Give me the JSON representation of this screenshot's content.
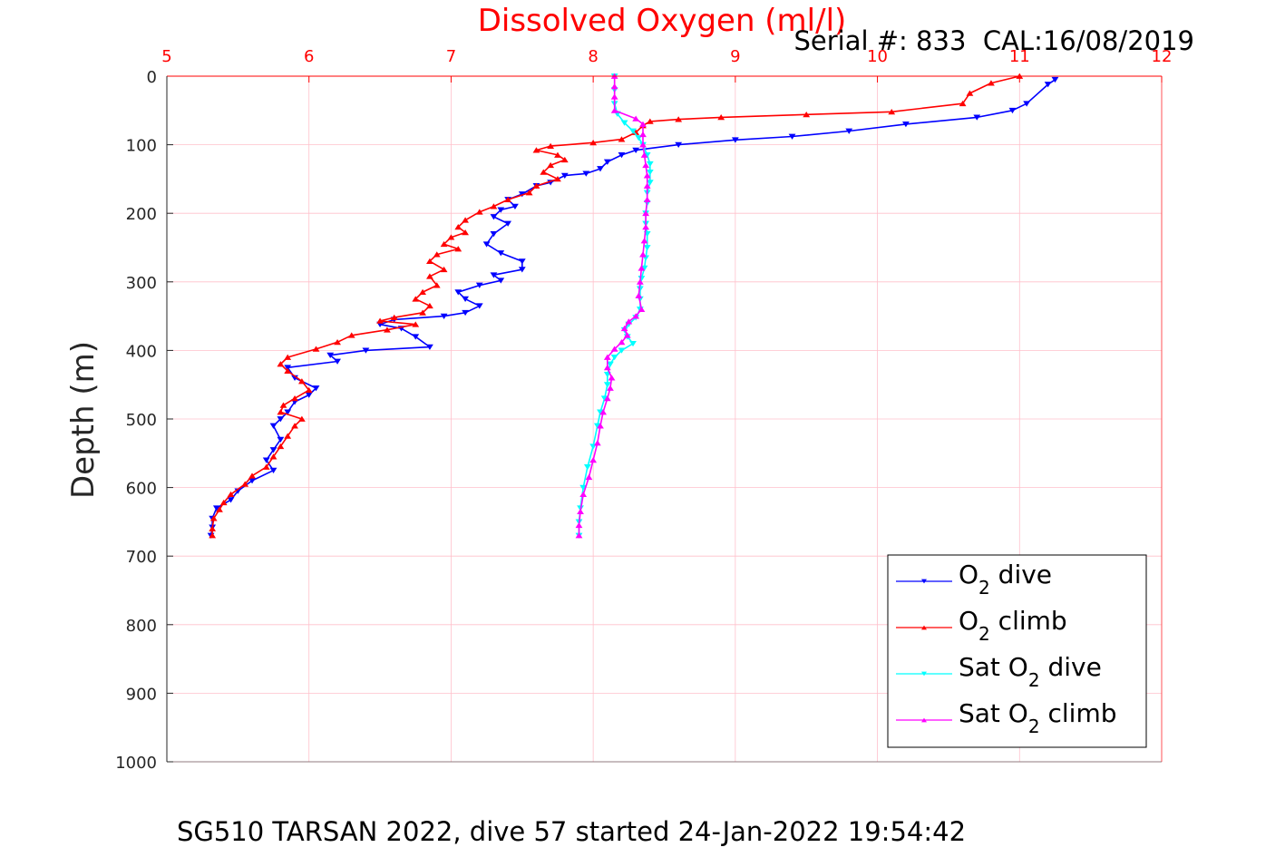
{
  "chart_data": {
    "type": "line",
    "title": "Dissolved Oxygen (ml/l)",
    "subtitle": "Serial #: 833  CAL:16/08/2019",
    "caption": "SG510 TARSAN 2022, dive 57 started 24-Jan-2022 19:54:42",
    "xlabel": "",
    "ylabel": "Depth (m)",
    "xlim": [
      5,
      12
    ],
    "ylim": [
      0,
      1000
    ],
    "y_reversed": true,
    "x_axis_position": "top",
    "xticks": [
      "5",
      "6",
      "7",
      "8",
      "9",
      "10",
      "11",
      "12"
    ],
    "yticks": [
      "0",
      "100",
      "200",
      "300",
      "400",
      "500",
      "600",
      "700",
      "800",
      "900",
      "1000"
    ],
    "grid": true,
    "legend_position": "bottom-right",
    "colors": {
      "title": "#ff0000",
      "x_ticks": "#ff0000",
      "grid": "#ffc0cb"
    },
    "legend": [
      {
        "pre": "O",
        "sub": "2",
        "post": " dive",
        "color": "#0000ff",
        "marker": "down-triangle"
      },
      {
        "pre": "O",
        "sub": "2",
        "post": " climb",
        "color": "#ff0000",
        "marker": "up-triangle"
      },
      {
        "pre": "Sat O",
        "sub": "2",
        "post": " dive",
        "color": "#00ffff",
        "marker": "down-triangle"
      },
      {
        "pre": "Sat O",
        "sub": "2",
        "post": " climb",
        "color": "#ff00ff",
        "marker": "up-triangle"
      }
    ],
    "series": [
      {
        "name": "O2 dive",
        "color": "#0000ff",
        "marker": "down-triangle",
        "points": [
          [
            11.25,
            5
          ],
          [
            11.2,
            12
          ],
          [
            11.05,
            40
          ],
          [
            10.95,
            50
          ],
          [
            10.7,
            60
          ],
          [
            10.2,
            70
          ],
          [
            9.8,
            80
          ],
          [
            9.4,
            88
          ],
          [
            9.0,
            93
          ],
          [
            8.6,
            100
          ],
          [
            8.3,
            108
          ],
          [
            8.2,
            115
          ],
          [
            8.1,
            125
          ],
          [
            8.05,
            135
          ],
          [
            7.95,
            142
          ],
          [
            7.8,
            145
          ],
          [
            7.7,
            155
          ],
          [
            7.6,
            160
          ],
          [
            7.5,
            172
          ],
          [
            7.4,
            180
          ],
          [
            7.45,
            190
          ],
          [
            7.35,
            195
          ],
          [
            7.3,
            205
          ],
          [
            7.4,
            215
          ],
          [
            7.3,
            230
          ],
          [
            7.25,
            245
          ],
          [
            7.35,
            258
          ],
          [
            7.5,
            270
          ],
          [
            7.5,
            282
          ],
          [
            7.3,
            290
          ],
          [
            7.35,
            298
          ],
          [
            7.2,
            305
          ],
          [
            7.05,
            315
          ],
          [
            7.1,
            325
          ],
          [
            7.2,
            335
          ],
          [
            7.1,
            345
          ],
          [
            6.95,
            350
          ],
          [
            6.6,
            355
          ],
          [
            6.5,
            362
          ],
          [
            6.65,
            368
          ],
          [
            6.75,
            380
          ],
          [
            6.85,
            395
          ],
          [
            6.4,
            400
          ],
          [
            6.15,
            407
          ],
          [
            6.2,
            416
          ],
          [
            5.85,
            425
          ],
          [
            5.9,
            440
          ],
          [
            6.05,
            455
          ],
          [
            6.0,
            465
          ],
          [
            5.9,
            475
          ],
          [
            5.85,
            490
          ],
          [
            5.8,
            500
          ],
          [
            5.75,
            510
          ],
          [
            5.8,
            530
          ],
          [
            5.75,
            545
          ],
          [
            5.7,
            560
          ],
          [
            5.75,
            575
          ],
          [
            5.6,
            590
          ],
          [
            5.5,
            605
          ],
          [
            5.45,
            618
          ],
          [
            5.35,
            630
          ],
          [
            5.32,
            645
          ],
          [
            5.32,
            658
          ],
          [
            5.31,
            670
          ]
        ]
      },
      {
        "name": "O2 climb",
        "color": "#ff0000",
        "marker": "up-triangle",
        "points": [
          [
            11.0,
            0
          ],
          [
            10.8,
            10
          ],
          [
            10.65,
            25
          ],
          [
            10.6,
            40
          ],
          [
            10.1,
            52
          ],
          [
            9.5,
            56
          ],
          [
            8.9,
            60
          ],
          [
            8.6,
            63
          ],
          [
            8.4,
            66
          ],
          [
            8.35,
            72
          ],
          [
            8.3,
            82
          ],
          [
            8.2,
            92
          ],
          [
            8.0,
            97
          ],
          [
            7.7,
            102
          ],
          [
            7.6,
            108
          ],
          [
            7.75,
            115
          ],
          [
            7.8,
            122
          ],
          [
            7.7,
            130
          ],
          [
            7.65,
            140
          ],
          [
            7.75,
            150
          ],
          [
            7.6,
            160
          ],
          [
            7.55,
            170
          ],
          [
            7.4,
            180
          ],
          [
            7.3,
            190
          ],
          [
            7.2,
            198
          ],
          [
            7.1,
            210
          ],
          [
            7.05,
            220
          ],
          [
            7.1,
            228
          ],
          [
            7.0,
            235
          ],
          [
            6.95,
            245
          ],
          [
            7.05,
            252
          ],
          [
            6.9,
            260
          ],
          [
            6.85,
            270
          ],
          [
            6.95,
            282
          ],
          [
            6.85,
            292
          ],
          [
            6.9,
            305
          ],
          [
            6.8,
            315
          ],
          [
            6.75,
            325
          ],
          [
            6.85,
            335
          ],
          [
            6.8,
            345
          ],
          [
            6.6,
            352
          ],
          [
            6.5,
            357
          ],
          [
            6.75,
            362
          ],
          [
            6.55,
            370
          ],
          [
            6.3,
            378
          ],
          [
            6.2,
            388
          ],
          [
            6.05,
            398
          ],
          [
            5.85,
            410
          ],
          [
            5.8,
            420
          ],
          [
            5.85,
            430
          ],
          [
            5.95,
            445
          ],
          [
            6.0,
            458
          ],
          [
            5.9,
            470
          ],
          [
            5.82,
            480
          ],
          [
            5.8,
            490
          ],
          [
            5.95,
            500
          ],
          [
            5.9,
            510
          ],
          [
            5.85,
            525
          ],
          [
            5.8,
            540
          ],
          [
            5.75,
            555
          ],
          [
            5.7,
            570
          ],
          [
            5.6,
            583
          ],
          [
            5.55,
            595
          ],
          [
            5.45,
            610
          ],
          [
            5.4,
            622
          ],
          [
            5.37,
            632
          ],
          [
            5.33,
            645
          ],
          [
            5.32,
            660
          ],
          [
            5.32,
            670
          ]
        ]
      },
      {
        "name": "Sat O2 dive",
        "color": "#00ffff",
        "marker": "down-triangle",
        "points": [
          [
            8.15,
            0
          ],
          [
            8.15,
            20
          ],
          [
            8.15,
            40
          ],
          [
            8.17,
            55
          ],
          [
            8.22,
            68
          ],
          [
            8.28,
            80
          ],
          [
            8.32,
            90
          ],
          [
            8.35,
            100
          ],
          [
            8.38,
            115
          ],
          [
            8.4,
            128
          ],
          [
            8.4,
            140
          ],
          [
            8.4,
            155
          ],
          [
            8.38,
            170
          ],
          [
            8.38,
            185
          ],
          [
            8.37,
            200
          ],
          [
            8.37,
            215
          ],
          [
            8.38,
            230
          ],
          [
            8.38,
            250
          ],
          [
            8.37,
            265
          ],
          [
            8.36,
            280
          ],
          [
            8.34,
            295
          ],
          [
            8.33,
            310
          ],
          [
            8.33,
            325
          ],
          [
            8.33,
            340
          ],
          [
            8.3,
            352
          ],
          [
            8.25,
            362
          ],
          [
            8.22,
            370
          ],
          [
            8.24,
            380
          ],
          [
            8.28,
            390
          ],
          [
            8.2,
            400
          ],
          [
            8.15,
            410
          ],
          [
            8.12,
            420
          ],
          [
            8.1,
            435
          ],
          [
            8.1,
            450
          ],
          [
            8.08,
            470
          ],
          [
            8.05,
            490
          ],
          [
            8.03,
            510
          ],
          [
            8.0,
            540
          ],
          [
            7.96,
            570
          ],
          [
            7.93,
            600
          ],
          [
            7.91,
            630
          ],
          [
            7.9,
            650
          ],
          [
            7.9,
            670
          ]
        ]
      },
      {
        "name": "Sat O2 climb",
        "color": "#ff00ff",
        "marker": "up-triangle",
        "points": [
          [
            8.15,
            0
          ],
          [
            8.15,
            15
          ],
          [
            8.15,
            30
          ],
          [
            8.15,
            50
          ],
          [
            8.3,
            62
          ],
          [
            8.35,
            70
          ],
          [
            8.35,
            85
          ],
          [
            8.35,
            100
          ],
          [
            8.36,
            115
          ],
          [
            8.37,
            130
          ],
          [
            8.38,
            145
          ],
          [
            8.38,
            160
          ],
          [
            8.38,
            180
          ],
          [
            8.37,
            200
          ],
          [
            8.37,
            220
          ],
          [
            8.36,
            240
          ],
          [
            8.35,
            260
          ],
          [
            8.34,
            280
          ],
          [
            8.33,
            300
          ],
          [
            8.32,
            320
          ],
          [
            8.34,
            340
          ],
          [
            8.3,
            350
          ],
          [
            8.25,
            358
          ],
          [
            8.22,
            368
          ],
          [
            8.24,
            378
          ],
          [
            8.2,
            388
          ],
          [
            8.15,
            398
          ],
          [
            8.1,
            410
          ],
          [
            8.1,
            425
          ],
          [
            8.13,
            440
          ],
          [
            8.12,
            455
          ],
          [
            8.1,
            470
          ],
          [
            8.07,
            490
          ],
          [
            8.05,
            510
          ],
          [
            8.03,
            535
          ],
          [
            8.0,
            560
          ],
          [
            7.97,
            585
          ],
          [
            7.93,
            610
          ],
          [
            7.91,
            635
          ],
          [
            7.9,
            655
          ],
          [
            7.9,
            670
          ]
        ]
      }
    ]
  }
}
